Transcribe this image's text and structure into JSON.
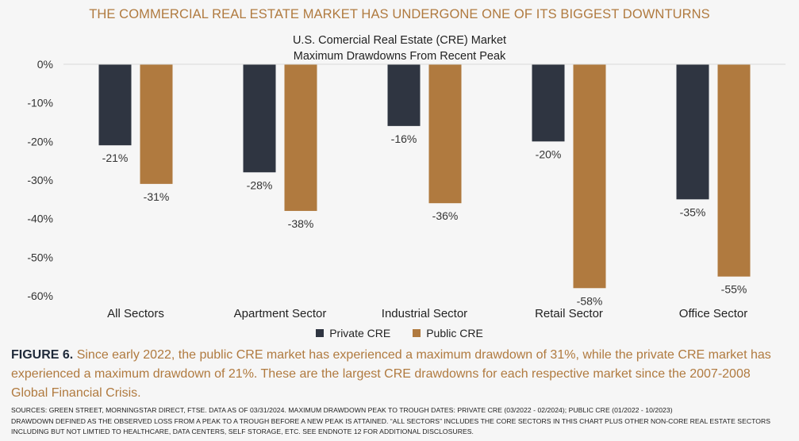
{
  "headline": "THE COMMERCIAL REAL ESTATE MARKET HAS UNDERGONE ONE OF ITS BIGGEST DOWNTURNS",
  "chart_data": {
    "type": "bar",
    "title": "U.S. Comercial Real Estate (CRE) Market",
    "subtitle": "Maximum Drawdowns From Recent Peak",
    "categories": [
      "All Sectors",
      "Apartment Sector",
      "Industrial Sector",
      "Retail Sector",
      "Office Sector"
    ],
    "series": [
      {
        "name": "Private CRE",
        "color": "#2f3541",
        "values": [
          -21,
          -28,
          -16,
          -20,
          -35
        ],
        "labels": [
          "-21%",
          "-28%",
          "-16%",
          "-20%",
          "-35%"
        ]
      },
      {
        "name": "Public CRE",
        "color": "#b07a3f",
        "values": [
          -31,
          -38,
          -36,
          -58,
          -55
        ],
        "labels": [
          "-31%",
          "-38%",
          "-36%",
          "-58%",
          "-55%"
        ]
      }
    ],
    "ylim": [
      -60,
      0
    ],
    "yticks": [
      0,
      -10,
      -20,
      -30,
      -40,
      -50,
      -60
    ],
    "ytick_labels": [
      "0%",
      "-10%",
      "-20%",
      "-30%",
      "-40%",
      "-50%",
      "-60%"
    ],
    "grid": false,
    "legend_position": "bottom"
  },
  "caption": {
    "label": "FIGURE 6.",
    "text": "Since early 2022, the public CRE market has experienced a maximum drawdown of 31%, while the private CRE market has experienced a maximum drawdown of 21%. These are the largest CRE drawdowns for each respective market since the 2007-2008 Global Financial Crisis."
  },
  "notes": [
    "SOURCES: GREEN STREET, MORNINGSTAR DIRECT, FTSE. DATA AS OF 03/31/2024. MAXIMUM DRAWDOWN PEAK TO TROUGH DATES: PRIVATE CRE (03/2022 - 02/2024); PUBLIC CRE (01/2022 - 10/2023)",
    "DRAWDOWN DEFINED AS THE OBSERVED LOSS FROM A PEAK TO A TROUGH BEFORE A NEW PEAK IS ATTAINED.  “ALL SECTORS” INCLUDES THE CORE SECTORS IN THIS CHART PLUS OTHER NON-CORE REAL ESTATE SECTORS",
    "INCLUDING BUT NOT LIMTIED TO HEALTHCARE, DATA CENTERS, SELF STORAGE, ETC. SEE ENDNOTE 12 FOR ADDITIONAL DISCLOSURES."
  ]
}
